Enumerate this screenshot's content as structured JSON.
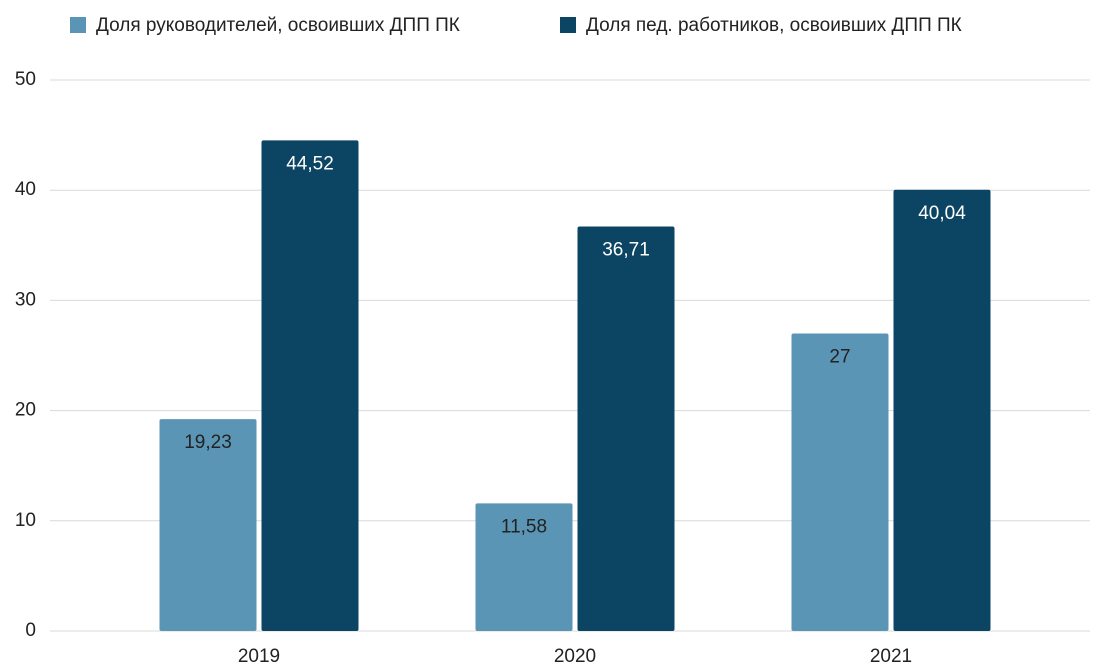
{
  "chart_data": {
    "type": "bar",
    "categories": [
      "2019",
      "2020",
      "2021"
    ],
    "series": [
      {
        "name": "Доля руководителей, освоивших ДПП ПК",
        "color": "#5b95b5",
        "values": [
          19.23,
          11.58,
          27
        ],
        "value_labels": [
          "19,23",
          "11,58",
          "27"
        ]
      },
      {
        "name": "Доля пед. работников, освоивших ДПП ПК",
        "color": "#0b4563",
        "values": [
          44.52,
          36.71,
          40.04
        ],
        "value_labels": [
          "44,52",
          "36,71",
          "40,04"
        ]
      }
    ],
    "ylim": [
      0,
      50
    ],
    "yticks": [
      0,
      10,
      20,
      30,
      40,
      50
    ],
    "grid": true,
    "legend": "top"
  }
}
